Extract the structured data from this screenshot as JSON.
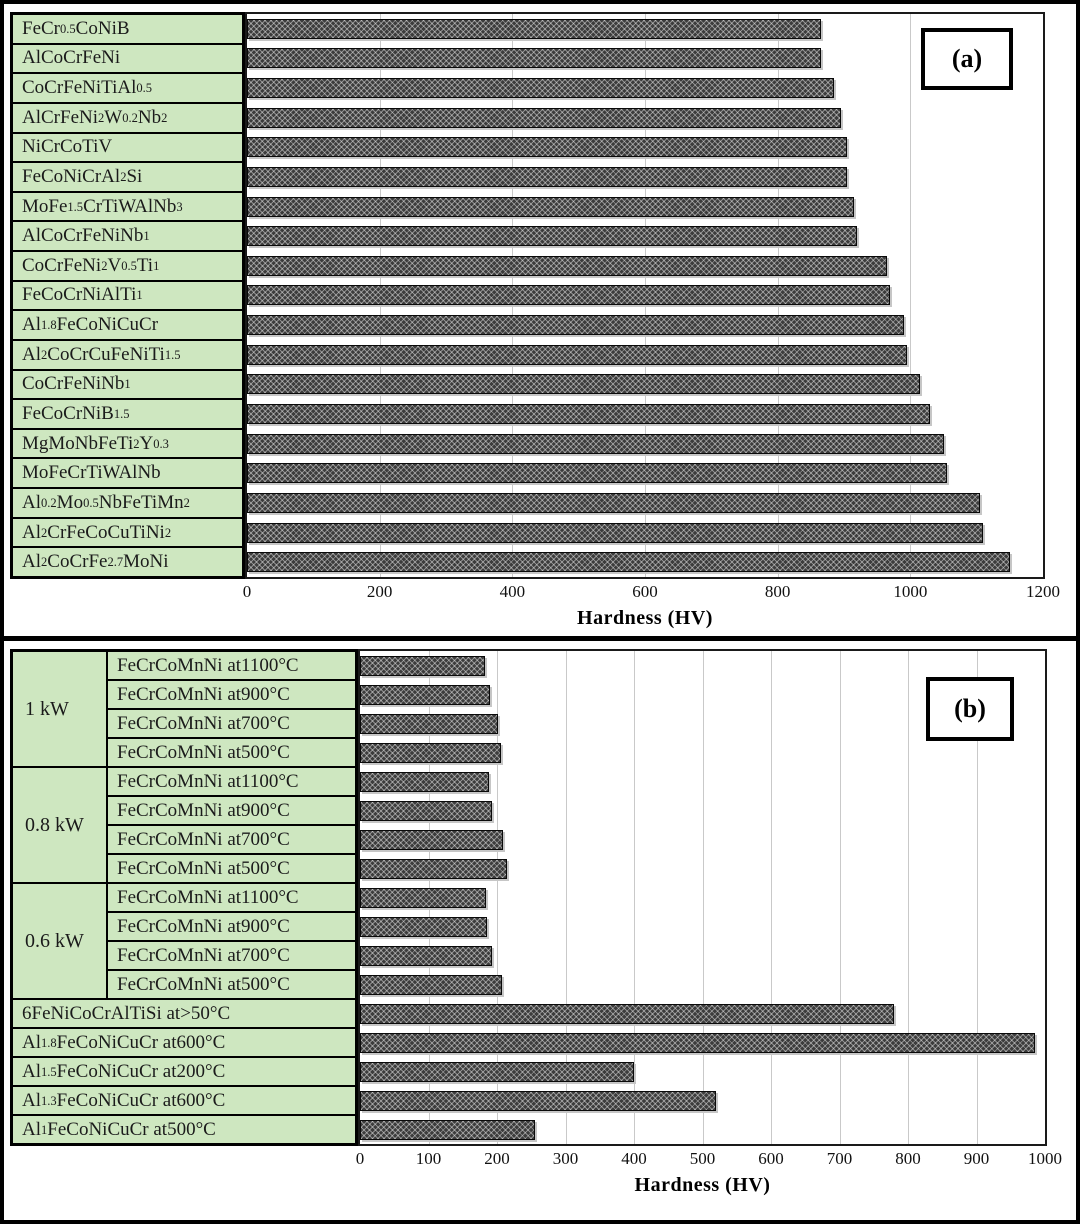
{
  "colors": {
    "label_cell_bg": "#cee7c0",
    "bar_fill": "#3c3c3c",
    "bar_hatch_light": "#aaaaaa",
    "gridline": "#c9c9c9",
    "frame": "#000000"
  },
  "chart_data": [
    {
      "id": "a",
      "type": "bar",
      "orientation": "horizontal",
      "panel_tag": "(a)",
      "xlabel": "Hardness (HV)",
      "xlim": [
        0,
        1200
      ],
      "xticks": [
        0,
        200,
        400,
        600,
        800,
        1000,
        1200
      ],
      "grid": "vertical-light",
      "legend": "none",
      "categories": [
        "FeCr{0.5}CoNiB",
        "AlCoCrFeNi",
        "CoCrFeNiTiAl{0.5}",
        "AlCrFeNi{2}W{0.2}Nb{2}",
        "NiCrCoTiV",
        "FeCoNiCrAl{2}Si",
        "MoFe{1.5}CrTiWAlNb{3}",
        "AlCoCrFeNiNb{1}",
        "CoCrFeNi{2}V{0.5}Ti{1}",
        "FeCoCrNiAlTi{1}",
        "Al{1.8}FeCoNiCuCr",
        "Al{2}CoCrCuFeNiTi{1.5}",
        "CoCrFeNiNb{1}",
        "FeCoCrNiB{1.5}",
        "MgMoNbFeTi{2}Y{0.3}",
        "MoFeCrTiWAlNb",
        "Al{0.2}Mo{0.5}NbFeTiMn{2}",
        "Al{2}CrFeCoCuTiNi{2}",
        "Al{2}CoCrFe{2.7}MoNi"
      ],
      "values": [
        865,
        865,
        885,
        895,
        905,
        905,
        915,
        920,
        965,
        970,
        990,
        995,
        1015,
        1030,
        1050,
        1055,
        1105,
        1110,
        1150
      ]
    },
    {
      "id": "b",
      "type": "bar",
      "orientation": "horizontal",
      "panel_tag": "(b)",
      "xlabel": "Hardness (HV)",
      "xlim": [
        0,
        1000
      ],
      "xticks": [
        0,
        100,
        200,
        300,
        400,
        500,
        600,
        700,
        800,
        900,
        1000
      ],
      "grid": "vertical-light",
      "legend": "none",
      "groups": [
        {
          "group": "1 kW",
          "categories": [
            "FeCrCoMnNi at1100°C",
            "FeCrCoMnNi at900°C",
            "FeCrCoMnNi at700°C",
            "FeCrCoMnNi at500°C"
          ],
          "values": [
            183,
            190,
            201,
            206
          ]
        },
        {
          "group": "0.8 kW",
          "categories": [
            "FeCrCoMnNi at1100°C",
            "FeCrCoMnNi at900°C",
            "FeCrCoMnNi at700°C",
            "FeCrCoMnNi at500°C"
          ],
          "values": [
            188,
            192,
            209,
            214
          ]
        },
        {
          "group": "0.6 kW",
          "categories": [
            "FeCrCoMnNi at1100°C",
            "FeCrCoMnNi at900°C",
            "FeCrCoMnNi at700°C",
            "FeCrCoMnNi at500°C"
          ],
          "values": [
            184,
            185,
            193,
            207
          ]
        }
      ],
      "ungrouped": {
        "categories": [
          "6FeNiCoCrAlTiSi  at>50°C",
          "Al{1.8}FeCoNiCuCr  at600°C",
          "Al{1.5}FeCoNiCuCr  at200°C",
          "Al{1.3}FeCoNiCuCr  at600°C",
          "Al{1}FeCoNiCuCr  at500°C"
        ],
        "values": [
          780,
          985,
          400,
          520,
          255
        ]
      }
    }
  ]
}
